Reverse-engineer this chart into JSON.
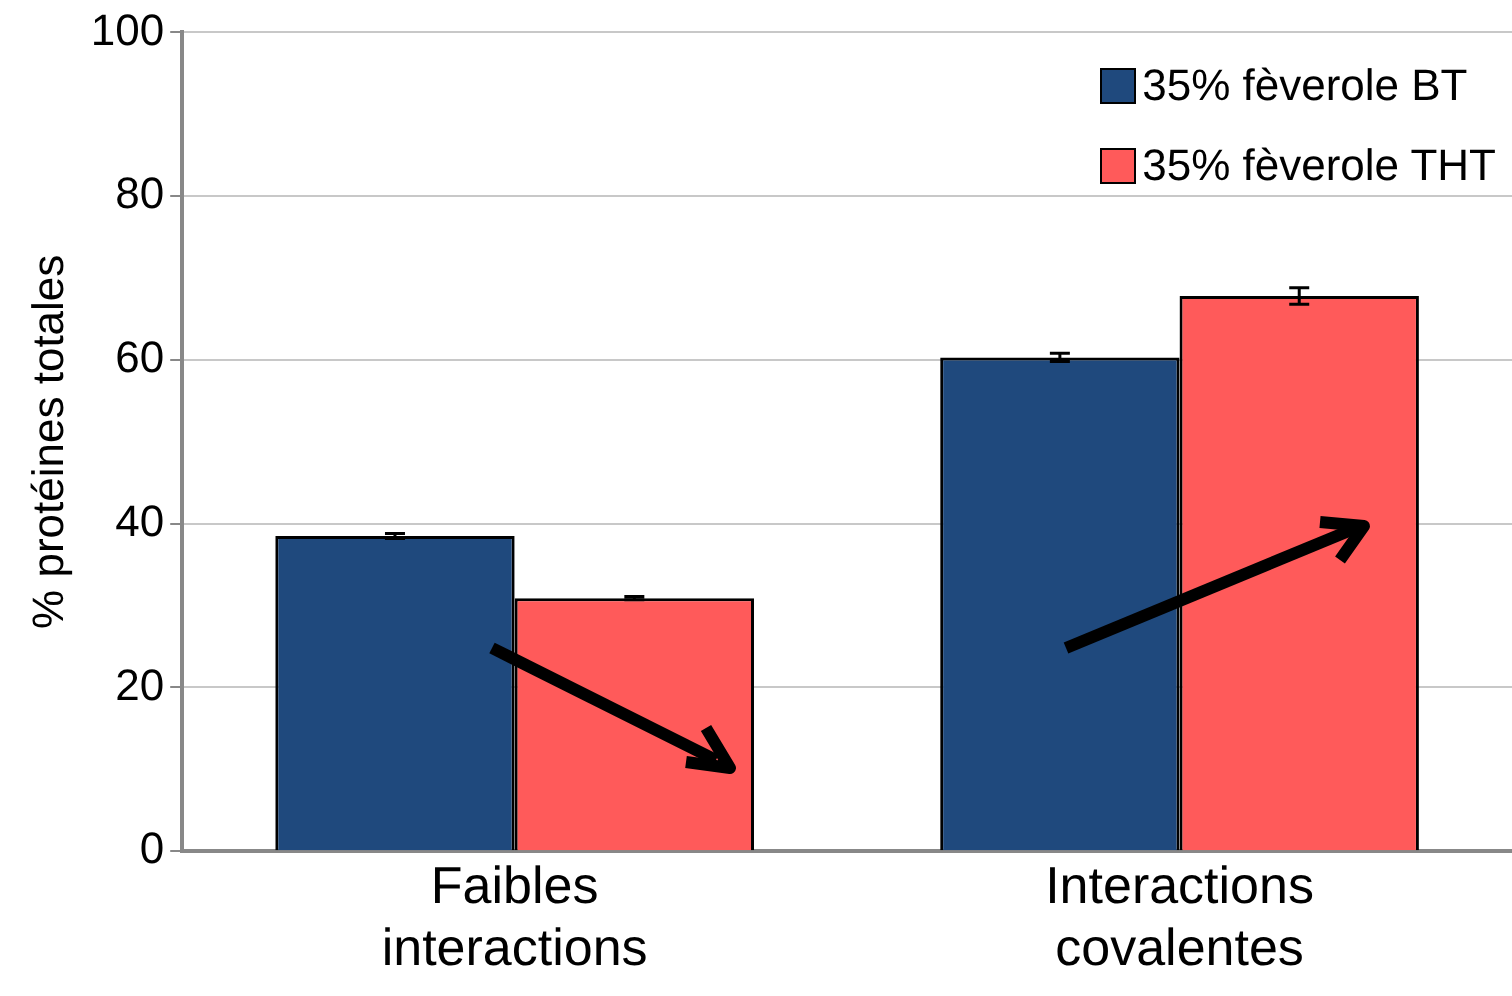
{
  "chart_data": {
    "type": "bar",
    "ylabel": "% protéines totales",
    "categories": [
      "Faibles interactions",
      "Interactions covalentes"
    ],
    "series": [
      {
        "name": "35% fèverole BT",
        "color": "#1f497d",
        "values": [
          38.5,
          60.3
        ],
        "errors": [
          0.3,
          0.5
        ]
      },
      {
        "name": "35% fèverole THT",
        "color": "#ff5a5a",
        "values": [
          30.9,
          67.8
        ],
        "errors": [
          0.2,
          1
        ]
      }
    ],
    "ylim": [
      0,
      100
    ],
    "yticks": [
      0,
      20,
      40,
      60,
      80,
      100
    ],
    "grid": "y",
    "legend": "top right"
  }
}
